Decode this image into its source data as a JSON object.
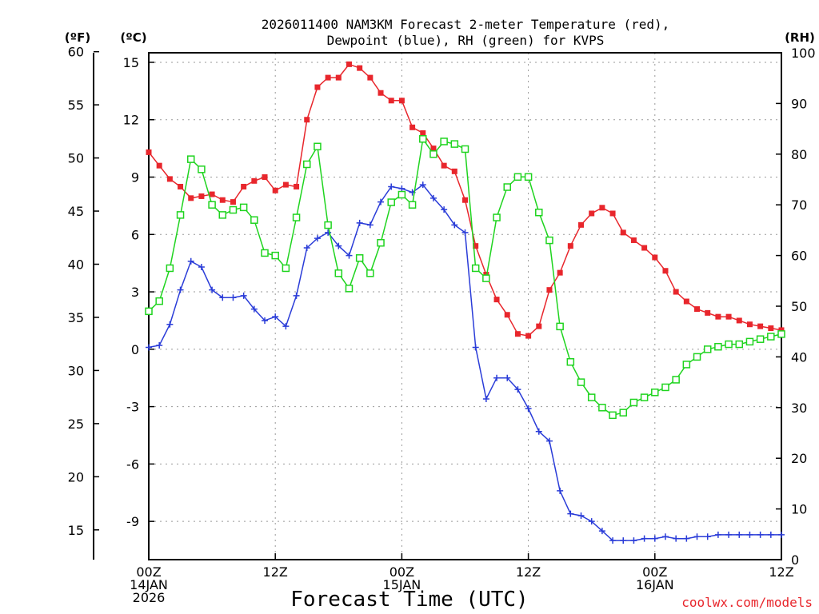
{
  "chart_data": {
    "type": "line",
    "title_lines": [
      "2026011400 NAM3KM Forecast 2-meter Temperature (red),",
      "Dewpoint (blue), RH (green) for KVPS"
    ],
    "xlabel": "Forecast Time (UTC)",
    "credit": "coolwx.com/models",
    "units": {
      "fahrenheit": "(ºF)",
      "celsius": "(ºC)",
      "rh": "(RH)"
    },
    "x_unit": "forecast hour",
    "xlim": [
      0,
      60
    ],
    "x_ticks": [
      {
        "hour": 0,
        "lines": [
          "00Z",
          "14JAN",
          "2026"
        ]
      },
      {
        "hour": 12,
        "lines": [
          "12Z"
        ]
      },
      {
        "hour": 24,
        "lines": [
          "00Z",
          "15JAN"
        ]
      },
      {
        "hour": 36,
        "lines": [
          "12Z"
        ]
      },
      {
        "hour": 48,
        "lines": [
          "00Z",
          "16JAN"
        ]
      },
      {
        "hour": 60,
        "lines": [
          "12Z"
        ]
      }
    ],
    "celsius_axis": {
      "min": -11,
      "max": 15.5,
      "ticks": [
        15,
        12,
        9,
        6,
        3,
        0,
        -3,
        -6,
        -9
      ]
    },
    "fahrenheit_axis": {
      "ticks": [
        60,
        55,
        50,
        45,
        40,
        35,
        30,
        25,
        20,
        15
      ]
    },
    "rh_axis": {
      "min": 0,
      "max": 100,
      "ticks": [
        100,
        90,
        80,
        70,
        60,
        50,
        40,
        30,
        20,
        10,
        0
      ]
    },
    "series": [
      {
        "name": "2-meter Temperature",
        "unit": "C",
        "color": "#e8262c",
        "marker": "filled-square",
        "hours": [
          0,
          1,
          2,
          3,
          4,
          5,
          6,
          7,
          8,
          9,
          10,
          11,
          12,
          13,
          14,
          15,
          16,
          17,
          18,
          19,
          20,
          21,
          22,
          23,
          24,
          25,
          26,
          27,
          28,
          29,
          30,
          31,
          32,
          33,
          34,
          35,
          36,
          37,
          38,
          39,
          40,
          41,
          42,
          43,
          44,
          45,
          46,
          47,
          48,
          49,
          50,
          51,
          52,
          53,
          54,
          55,
          56,
          57,
          58,
          59,
          60
        ],
        "values": [
          10.3,
          9.6,
          8.9,
          8.5,
          7.9,
          8.0,
          8.1,
          7.8,
          7.7,
          8.5,
          8.8,
          9.0,
          8.3,
          8.6,
          8.5,
          12.0,
          13.7,
          14.2,
          14.2,
          14.9,
          14.7,
          14.2,
          13.4,
          13.0,
          13.0,
          11.6,
          11.3,
          10.5,
          9.6,
          9.3,
          7.8,
          5.4,
          3.9,
          2.6,
          1.8,
          0.8,
          0.7,
          1.2,
          3.1,
          4.0,
          5.4,
          6.5,
          7.1,
          7.4,
          7.1,
          6.1,
          5.7,
          5.3,
          4.8,
          4.1,
          3.0,
          2.5,
          2.1,
          1.9,
          1.7,
          1.7,
          1.5,
          1.3,
          1.2,
          1.1,
          1.0
        ]
      },
      {
        "name": "Dewpoint",
        "unit": "C",
        "color": "#2a3cd8",
        "marker": "plus",
        "hours": [
          0,
          1,
          2,
          3,
          4,
          5,
          6,
          7,
          8,
          9,
          10,
          11,
          12,
          13,
          14,
          15,
          16,
          17,
          18,
          19,
          20,
          21,
          22,
          23,
          24,
          25,
          26,
          27,
          28,
          29,
          30,
          31,
          32,
          33,
          34,
          35,
          36,
          37,
          38,
          39,
          40,
          41,
          42,
          43,
          44,
          45,
          46,
          47,
          48,
          49,
          50,
          51,
          52,
          53,
          54,
          55,
          56,
          57,
          58,
          59,
          60
        ],
        "values": [
          0.1,
          0.2,
          1.3,
          3.1,
          4.6,
          4.3,
          3.1,
          2.7,
          2.7,
          2.8,
          2.1,
          1.5,
          1.7,
          1.2,
          2.8,
          5.3,
          5.8,
          6.1,
          5.4,
          4.9,
          6.6,
          6.5,
          7.7,
          8.5,
          8.4,
          8.2,
          8.6,
          7.9,
          7.3,
          6.5,
          6.1,
          0.1,
          -2.6,
          -1.5,
          -1.5,
          -2.1,
          -3.1,
          -4.3,
          -4.8,
          -7.4,
          -8.6,
          -8.7,
          -9.0,
          -9.5,
          -10.0,
          -10.0,
          -10.0,
          -9.9,
          -9.9,
          -9.8,
          -9.9,
          -9.9,
          -9.8,
          -9.8,
          -9.7,
          -9.7,
          -9.7,
          -9.7,
          -9.7,
          -9.7,
          -9.7
        ]
      },
      {
        "name": "RH",
        "unit": "%",
        "color": "#1fd41f",
        "marker": "open-square",
        "hours": [
          0,
          1,
          2,
          3,
          4,
          5,
          6,
          7,
          8,
          9,
          10,
          11,
          12,
          13,
          14,
          15,
          16,
          17,
          18,
          19,
          20,
          21,
          22,
          23,
          24,
          25,
          26,
          27,
          28,
          29,
          30,
          31,
          32,
          33,
          34,
          35,
          36,
          37,
          38,
          39,
          40,
          41,
          42,
          43,
          44,
          45,
          46,
          47,
          48,
          49,
          50,
          51,
          52,
          53,
          54,
          55,
          56,
          57,
          58,
          59,
          60
        ],
        "values": [
          49,
          51,
          57.5,
          68,
          79,
          77,
          70,
          68,
          69,
          69.5,
          67,
          60.5,
          60,
          57.5,
          67.5,
          78,
          81.5,
          66,
          56.5,
          53.5,
          59.5,
          56.5,
          62.5,
          70.5,
          72,
          70,
          83,
          80,
          82.5,
          82,
          81,
          57.5,
          55.5,
          67.5,
          73.5,
          75.5,
          75.5,
          68.5,
          63,
          46,
          39,
          35,
          32,
          30,
          28.5,
          29,
          31,
          32,
          33,
          34,
          35.5,
          38.5,
          40,
          41.5,
          42,
          42.5,
          42.5,
          43,
          43.5,
          44,
          44.5
        ]
      }
    ]
  }
}
